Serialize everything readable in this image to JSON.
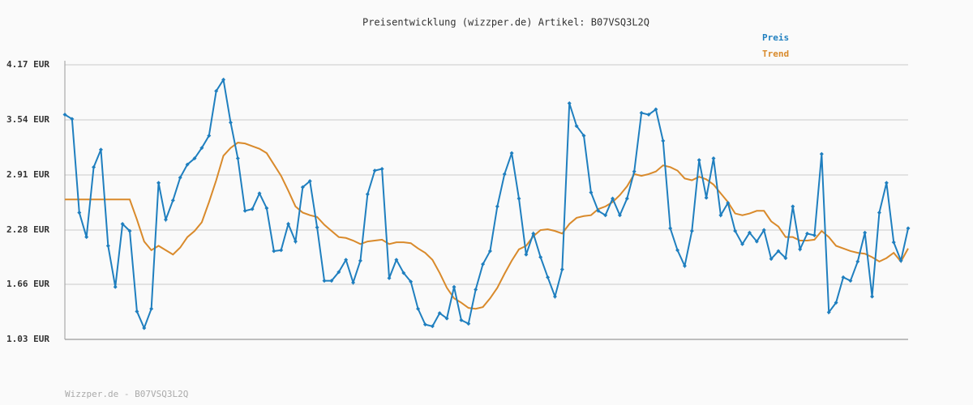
{
  "chart_data": {
    "type": "line",
    "title": "Preisentwicklung (wizzper.de) Artikel: B07VSQ3L2Q",
    "footer": "Wizzper.de - B07VSQ3L2Q",
    "legend": "top-right",
    "grid": true,
    "ylim": [
      1.03,
      4.17
    ],
    "yticks": [
      {
        "value": 1.03,
        "label": "1.03 EUR"
      },
      {
        "value": 1.66,
        "label": "1.66 EUR"
      },
      {
        "value": 2.28,
        "label": "2.28 EUR"
      },
      {
        "value": 2.91,
        "label": "2.91 EUR"
      },
      {
        "value": 3.54,
        "label": "3.54 EUR"
      },
      {
        "value": 4.17,
        "label": "4.17 EUR"
      }
    ],
    "series": [
      {
        "name": "Preis",
        "color": "#1f7fbf",
        "markers": true,
        "values": [
          3.6,
          3.55,
          2.48,
          2.2,
          3.0,
          3.2,
          2.1,
          1.63,
          2.35,
          2.27,
          1.35,
          1.16,
          1.38,
          2.82,
          2.4,
          2.62,
          2.88,
          3.03,
          3.1,
          3.22,
          3.36,
          3.87,
          4.0,
          3.51,
          3.1,
          2.5,
          2.52,
          2.7,
          2.53,
          2.04,
          2.05,
          2.35,
          2.15,
          2.77,
          2.84,
          2.31,
          1.7,
          1.7,
          1.8,
          1.94,
          1.68,
          1.93,
          2.69,
          2.96,
          2.98,
          1.73,
          1.94,
          1.79,
          1.69,
          1.38,
          1.2,
          1.18,
          1.33,
          1.27,
          1.63,
          1.25,
          1.21,
          1.6,
          1.89,
          2.04,
          2.55,
          2.92,
          3.16,
          2.64,
          2.0,
          2.24,
          1.97,
          1.74,
          1.52,
          1.83,
          3.73,
          3.47,
          3.36,
          2.71,
          2.5,
          2.45,
          2.64,
          2.45,
          2.64,
          2.95,
          3.62,
          3.6,
          3.66,
          3.3,
          2.3,
          2.05,
          1.87,
          2.27,
          3.08,
          2.65,
          3.1,
          2.45,
          2.59,
          2.27,
          2.12,
          2.25,
          2.15,
          2.28,
          1.95,
          2.04,
          1.96,
          2.55,
          2.06,
          2.24,
          2.22,
          3.15,
          1.34,
          1.45,
          1.74,
          1.7,
          1.92,
          2.25,
          1.52,
          2.48,
          2.82,
          2.14,
          1.93,
          2.3
        ]
      },
      {
        "name": "Trend",
        "color": "#d98a2b",
        "markers": false,
        "values": [
          2.63,
          2.63,
          2.63,
          2.63,
          2.63,
          2.63,
          2.63,
          2.63,
          2.63,
          2.63,
          2.4,
          2.15,
          2.05,
          2.1,
          2.05,
          2.0,
          2.08,
          2.2,
          2.27,
          2.37,
          2.6,
          2.85,
          3.13,
          3.22,
          3.28,
          3.27,
          3.24,
          3.21,
          3.16,
          3.03,
          2.9,
          2.73,
          2.55,
          2.48,
          2.45,
          2.43,
          2.34,
          2.27,
          2.2,
          2.19,
          2.16,
          2.12,
          2.15,
          2.16,
          2.17,
          2.12,
          2.14,
          2.14,
          2.13,
          2.07,
          2.02,
          1.94,
          1.79,
          1.62,
          1.5,
          1.45,
          1.39,
          1.38,
          1.4,
          1.5,
          1.62,
          1.78,
          1.93,
          2.06,
          2.1,
          2.21,
          2.28,
          2.29,
          2.27,
          2.24,
          2.35,
          2.42,
          2.44,
          2.45,
          2.52,
          2.55,
          2.6,
          2.68,
          2.78,
          2.92,
          2.9,
          2.92,
          2.95,
          3.02,
          3.0,
          2.96,
          2.87,
          2.85,
          2.89,
          2.86,
          2.8,
          2.7,
          2.6,
          2.47,
          2.45,
          2.47,
          2.5,
          2.5,
          2.38,
          2.32,
          2.2,
          2.2,
          2.16,
          2.16,
          2.17,
          2.27,
          2.2,
          2.1,
          2.07,
          2.04,
          2.02,
          2.01,
          1.97,
          1.92,
          1.96,
          2.02,
          1.92,
          2.07
        ]
      }
    ]
  }
}
